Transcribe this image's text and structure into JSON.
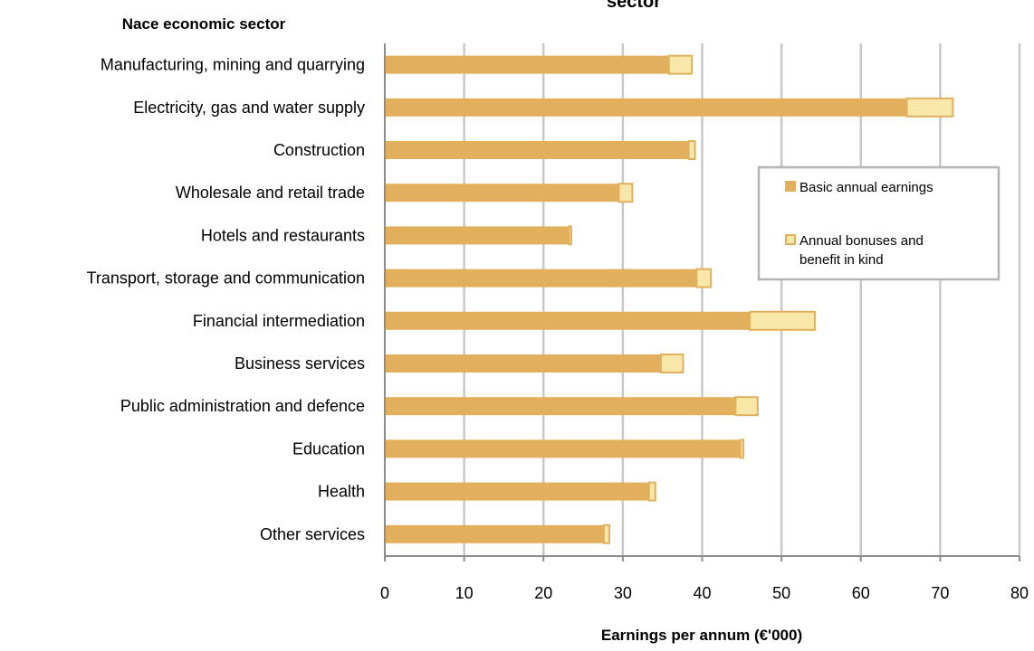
{
  "chart_data": {
    "type": "bar",
    "orientation": "horizontal",
    "stacked": true,
    "title": "sector",
    "ylabel": "Nace economic sector",
    "xlabel": "Earnings per annum (€'000)",
    "xlim": [
      0,
      80
    ],
    "xticks": [
      0,
      10,
      20,
      30,
      40,
      50,
      60,
      70,
      80
    ],
    "grid": "vertical",
    "legend_position": "right",
    "categories": [
      "Manufacturing, mining and quarrying",
      "Electricity, gas and water supply",
      "Construction",
      "Wholesale and retail trade",
      "Hotels and restaurants",
      "Transport, storage and communication",
      "Financial intermediation",
      "Business services",
      "Public administration and defence",
      "Education",
      "Health",
      "Other services"
    ],
    "series": [
      {
        "name": "Basic annual earnings",
        "color": "#e2b05c",
        "values": [
          35.8,
          65.8,
          38.3,
          29.5,
          23.2,
          39.3,
          46.0,
          34.8,
          44.2,
          44.8,
          33.3,
          27.6
        ]
      },
      {
        "name": "Annual bonuses and benefit in kind",
        "color": "#f7e7a9",
        "values": [
          2.9,
          5.8,
          0.8,
          1.7,
          0.3,
          1.8,
          8.2,
          2.8,
          2.8,
          0.4,
          0.8,
          0.7
        ]
      }
    ]
  }
}
